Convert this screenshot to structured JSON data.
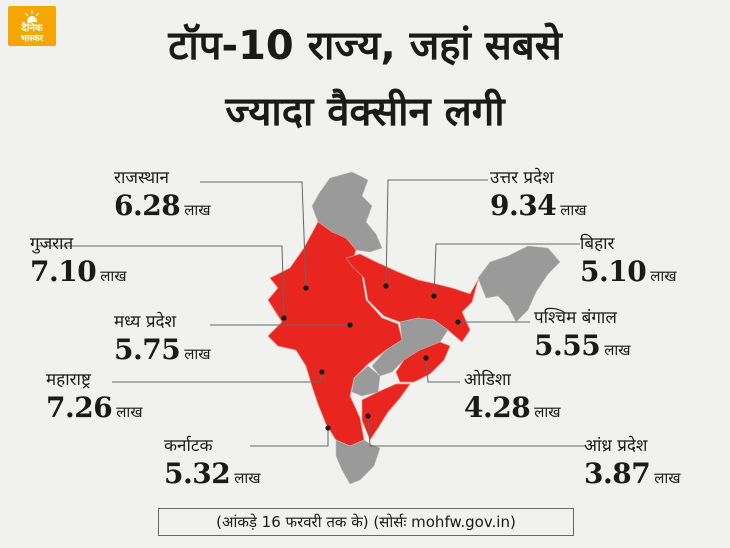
{
  "logo": {
    "line1": "दैनिक",
    "line2": "भास्कर"
  },
  "title": {
    "line1": "टॉप-10 राज्य, जहां सबसे",
    "line2": "ज्यादा वैक्सीन लगी"
  },
  "states": [
    {
      "name": "राजस्थान",
      "value": "6.28",
      "unit": "लाख",
      "highlighted": true
    },
    {
      "name": "गुजरात",
      "value": "7.10",
      "unit": "लाख",
      "highlighted": true
    },
    {
      "name": "मध्य प्रदेश",
      "value": "5.75",
      "unit": "लाख",
      "highlighted": true
    },
    {
      "name": "महाराष्ट्र",
      "value": "7.26",
      "unit": "लाख",
      "highlighted": true
    },
    {
      "name": "कर्नाटक",
      "value": "5.32",
      "unit": "लाख",
      "highlighted": true
    },
    {
      "name": "उत्तर प्रदेश",
      "value": "9.34",
      "unit": "लाख",
      "highlighted": true
    },
    {
      "name": "बिहार",
      "value": "5.10",
      "unit": "लाख",
      "highlighted": true
    },
    {
      "name": "पश्चिम बंगाल",
      "value": "5.55",
      "unit": "लाख",
      "highlighted": true
    },
    {
      "name": "ओडिशा",
      "value": "4.28",
      "unit": "लाख",
      "highlighted": true
    },
    {
      "name": "आंध्र प्रदेश",
      "value": "3.87",
      "unit": "लाख",
      "highlighted": true
    }
  ],
  "footer": "(आंकड़े 16 फरवरी तक के) (सोर्सः mohfw.gov.in)",
  "colors": {
    "highlight": "#e8251f",
    "other": "#9a9a9a",
    "background": "#f1f1ef",
    "logo": "#f5a600"
  }
}
